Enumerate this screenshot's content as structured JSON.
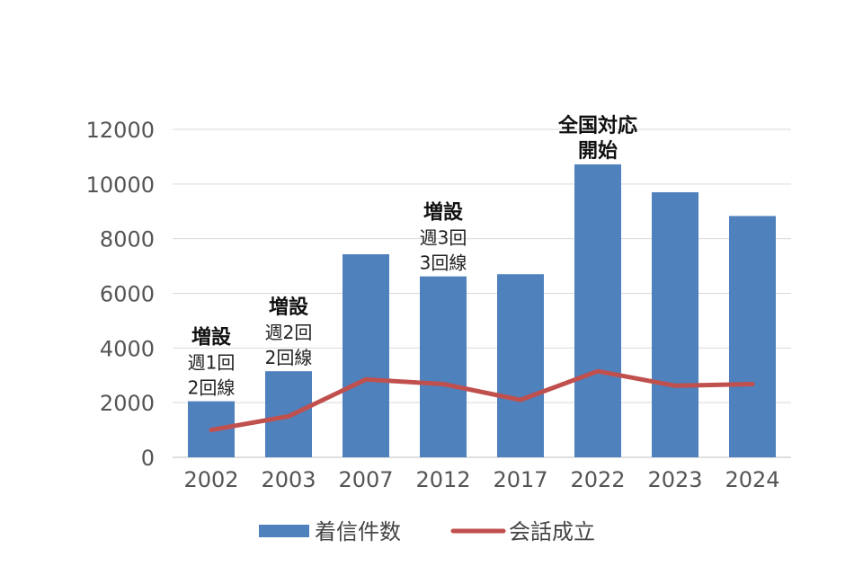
{
  "chart_data": {
    "type": "bar",
    "categories": [
      "2002",
      "2003",
      "2007",
      "2012",
      "2017",
      "2022",
      "2023",
      "2024"
    ],
    "series": [
      {
        "name": "着信件数",
        "kind": "bar",
        "color": "#4f81bd",
        "values": [
          2050,
          3150,
          7430,
          6620,
          6700,
          10720,
          9700,
          8830
        ]
      },
      {
        "name": "会話成立",
        "kind": "line",
        "color": "#c0504d",
        "values": [
          1000,
          1500,
          2850,
          2680,
          2100,
          3150,
          2620,
          2680
        ]
      }
    ],
    "ylim": [
      0,
      12000
    ],
    "yticks": [
      "0",
      "2000",
      "4000",
      "6000",
      "8000",
      "10000",
      "12000"
    ],
    "grid": true,
    "legend": "bottom",
    "annotations": [
      {
        "category": "2002",
        "lines": [
          "増設",
          "週1回",
          "2回線"
        ]
      },
      {
        "category": "2003",
        "lines": [
          "増設",
          "週2回",
          "2回線"
        ]
      },
      {
        "category": "2012",
        "lines": [
          "増設",
          "週3回",
          "3回線"
        ]
      },
      {
        "category": "2022",
        "lines": [
          "全国対応",
          "開始"
        ]
      }
    ]
  }
}
